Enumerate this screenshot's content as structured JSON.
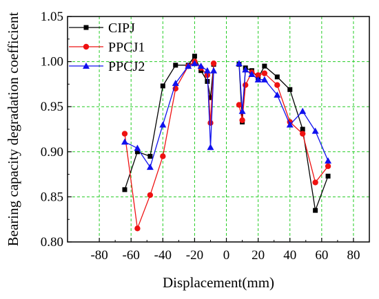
{
  "chart_data": {
    "type": "line",
    "title": "",
    "xlabel": "Displacement(mm)",
    "ylabel": "Bearing capacity degradation coefficient",
    "xlim": [
      -100,
      90
    ],
    "ylim": [
      0.8,
      1.05
    ],
    "xticks": [
      -80,
      -60,
      -40,
      -20,
      0,
      20,
      40,
      60,
      80
    ],
    "yticks": [
      0.8,
      0.85,
      0.9,
      0.95,
      1.0,
      1.05
    ],
    "xtick_labels": [
      "-80",
      "-60",
      "-40",
      "-20",
      "0",
      "20",
      "40",
      "60",
      "80"
    ],
    "ytick_labels": [
      "0.80",
      "0.85",
      "0.90",
      "0.95",
      "1.00",
      "1.05"
    ],
    "grid": true,
    "grid_style": "dashed",
    "grid_color": "#22cc22",
    "legend_position": "top-left",
    "series": [
      {
        "name": "CIPJ",
        "color": "#000000",
        "marker": "square",
        "segments": [
          [
            [
              -64,
              0.858
            ],
            [
              -56,
              0.9
            ],
            [
              -48,
              0.895
            ],
            [
              -40,
              0.973
            ],
            [
              -32,
              0.996
            ],
            [
              -24,
              0.996
            ],
            [
              -20,
              1.006
            ],
            [
              -16,
              0.99
            ],
            [
              -12,
              0.978
            ],
            [
              -10,
              0.96
            ],
            [
              -8,
              0.997
            ]
          ],
          [
            [
              8,
              0.997
            ],
            [
              10,
              0.933
            ],
            [
              12,
              0.993
            ],
            [
              16,
              0.99
            ],
            [
              20,
              0.982
            ],
            [
              24,
              0.995
            ],
            [
              32,
              0.983
            ],
            [
              40,
              0.969
            ],
            [
              48,
              0.925
            ],
            [
              56,
              0.835
            ],
            [
              64,
              0.873
            ]
          ]
        ]
      },
      {
        "name": "PPCJ1",
        "color": "#ee1111",
        "marker": "circle",
        "segments": [
          [
            [
              -64,
              0.92
            ],
            [
              -56,
              0.815
            ],
            [
              -48,
              0.852
            ],
            [
              -40,
              0.895
            ],
            [
              -32,
              0.97
            ],
            [
              -24,
              0.995
            ],
            [
              -20,
              1.0
            ],
            [
              -16,
              0.993
            ],
            [
              -12,
              0.985
            ],
            [
              -10,
              0.932
            ],
            [
              -8,
              0.998
            ]
          ],
          [
            [
              8,
              0.952
            ],
            [
              10,
              0.935
            ],
            [
              12,
              0.974
            ],
            [
              16,
              0.988
            ],
            [
              20,
              0.985
            ],
            [
              24,
              0.987
            ],
            [
              32,
              0.974
            ],
            [
              40,
              0.933
            ],
            [
              48,
              0.92
            ],
            [
              56,
              0.866
            ],
            [
              64,
              0.884
            ]
          ]
        ]
      },
      {
        "name": "PPCJ2",
        "color": "#1111ee",
        "marker": "triangle",
        "segments": [
          [
            [
              -64,
              0.911
            ],
            [
              -56,
              0.904
            ],
            [
              -48,
              0.883
            ],
            [
              -40,
              0.93
            ],
            [
              -32,
              0.976
            ],
            [
              -24,
              0.995
            ],
            [
              -20,
              0.998
            ],
            [
              -16,
              0.995
            ],
            [
              -12,
              0.99
            ],
            [
              -10,
              0.905
            ],
            [
              -8,
              0.99
            ]
          ],
          [
            [
              8,
              0.998
            ],
            [
              10,
              0.945
            ],
            [
              12,
              0.991
            ],
            [
              16,
              0.986
            ],
            [
              20,
              0.98
            ],
            [
              24,
              0.98
            ],
            [
              32,
              0.963
            ],
            [
              40,
              0.93
            ],
            [
              48,
              0.945
            ],
            [
              56,
              0.923
            ],
            [
              64,
              0.89
            ]
          ]
        ]
      }
    ]
  }
}
